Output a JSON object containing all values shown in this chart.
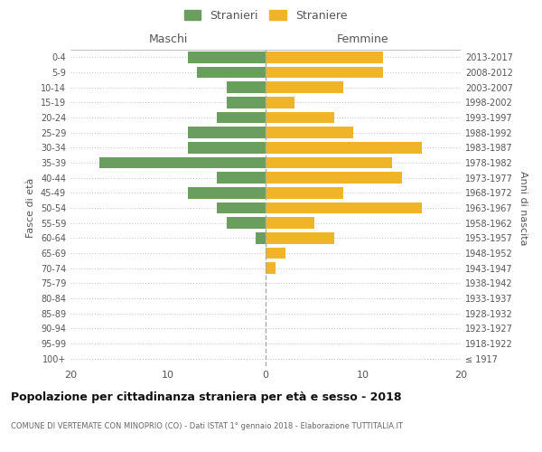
{
  "age_groups": [
    "100+",
    "95-99",
    "90-94",
    "85-89",
    "80-84",
    "75-79",
    "70-74",
    "65-69",
    "60-64",
    "55-59",
    "50-54",
    "45-49",
    "40-44",
    "35-39",
    "30-34",
    "25-29",
    "20-24",
    "15-19",
    "10-14",
    "5-9",
    "0-4"
  ],
  "birth_years": [
    "≤ 1917",
    "1918-1922",
    "1923-1927",
    "1928-1932",
    "1933-1937",
    "1938-1942",
    "1943-1947",
    "1948-1952",
    "1953-1957",
    "1958-1962",
    "1963-1967",
    "1968-1972",
    "1973-1977",
    "1978-1982",
    "1983-1987",
    "1988-1992",
    "1993-1997",
    "1998-2002",
    "2003-2007",
    "2008-2012",
    "2013-2017"
  ],
  "maschi": [
    0,
    0,
    0,
    0,
    0,
    0,
    0,
    0,
    1,
    4,
    5,
    8,
    5,
    17,
    8,
    8,
    5,
    4,
    4,
    7,
    8
  ],
  "femmine": [
    0,
    0,
    0,
    0,
    0,
    0,
    1,
    2,
    7,
    5,
    16,
    8,
    14,
    13,
    16,
    9,
    7,
    3,
    8,
    12,
    12
  ],
  "maschi_color": "#6a9e5e",
  "femmine_color": "#f0b429",
  "bar_height": 0.75,
  "xlim": 20,
  "title": "Popolazione per cittadinanza straniera per età e sesso - 2018",
  "subtitle": "COMUNE DI VERTEMATE CON MINOPRIO (CO) - Dati ISTAT 1° gennaio 2018 - Elaborazione TUTTITALIA.IT",
  "ylabel_left": "Fasce di età",
  "ylabel_right": "Anni di nascita",
  "xlabel_left": "Maschi",
  "xlabel_top_right": "Femmine",
  "legend_stranieri": "Stranieri",
  "legend_straniere": "Straniere",
  "background_color": "#ffffff",
  "grid_color": "#cccccc",
  "text_color": "#555555",
  "title_color": "#111111",
  "subtitle_color": "#666666"
}
